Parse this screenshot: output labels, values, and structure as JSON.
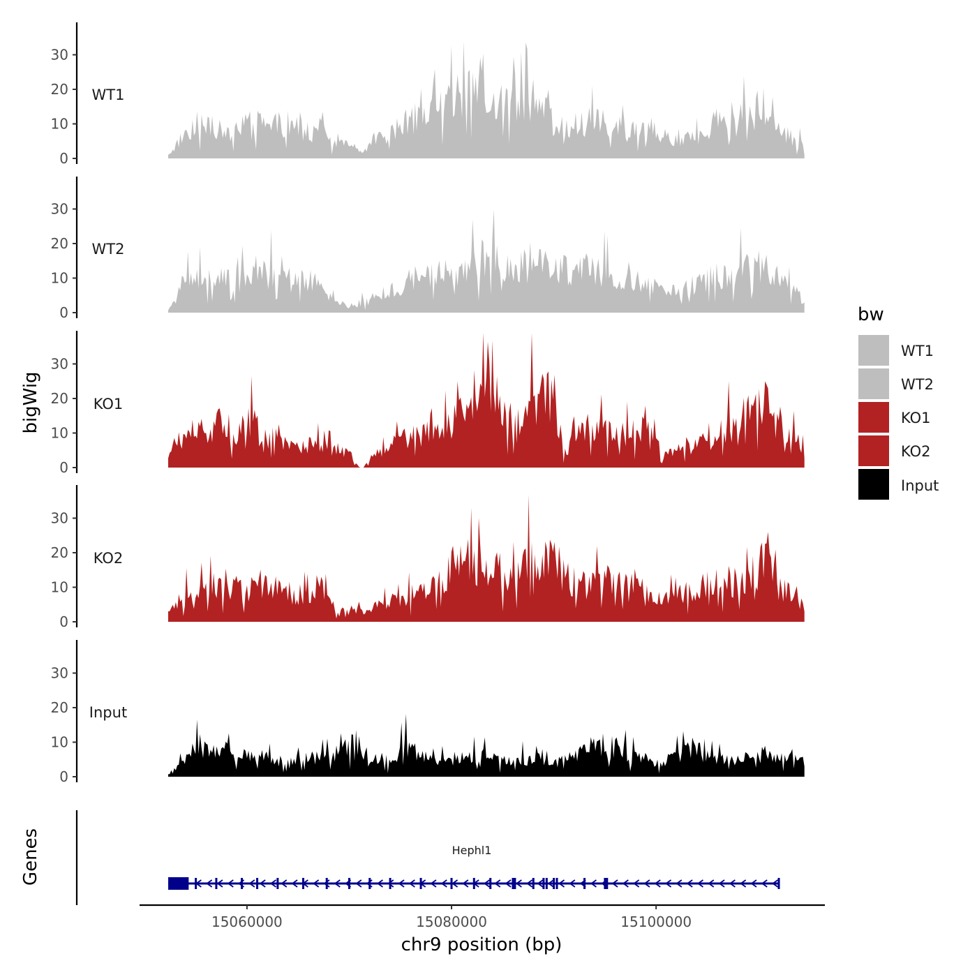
{
  "chart_data": {
    "type": "area",
    "y_title": "bigWig",
    "x_title": "chr9 position (bp)",
    "genes_title": "Genes",
    "ylim": [
      0,
      40
    ],
    "y_ticks": [
      0,
      10,
      20,
      30
    ],
    "xlim": [
      15049500,
      15116500
    ],
    "x_ticks": [
      15060000,
      15080000,
      15100000
    ],
    "x_tick_labels": [
      "15060000",
      "15080000",
      "15100000"
    ],
    "region": [
      15052300,
      15114500
    ],
    "legend": {
      "title": "bw",
      "entries": [
        {
          "label": "WT1",
          "color": "#bebebe"
        },
        {
          "label": "WT2",
          "color": "#bebebe"
        },
        {
          "label": "KO1",
          "color": "#b22222"
        },
        {
          "label": "KO2",
          "color": "#b22222"
        },
        {
          "label": "Input",
          "color": "#000000"
        }
      ]
    },
    "series": [
      {
        "name": "WT1",
        "color": "#bebebe",
        "x": [
          15052300,
          15054000,
          15056000,
          15058000,
          15060000,
          15062000,
          15064000,
          15066000,
          15067000,
          15068000,
          15070000,
          15071500,
          15072500,
          15074000,
          15076000,
          15078000,
          15080000,
          15081000,
          15082000,
          15083300,
          15084000,
          15086000,
          15088000,
          15089500,
          15090000,
          15092000,
          15094000,
          15096000,
          15098000,
          15100000,
          15102000,
          15104000,
          15106000,
          15108000,
          15110000,
          15112000,
          15114500
        ],
        "values": [
          1,
          8,
          12,
          7,
          12,
          10,
          11,
          8,
          13,
          5,
          4,
          2,
          6,
          8,
          12,
          14,
          18,
          20,
          22,
          25,
          18,
          15,
          20,
          18,
          8,
          10,
          12,
          11,
          10,
          8,
          5,
          7,
          12,
          15,
          14,
          9,
          4
        ]
      },
      {
        "name": "WT2",
        "color": "#bebebe",
        "x": [
          15052300,
          15054000,
          15056000,
          15058000,
          15060000,
          15062000,
          15064000,
          15066000,
          15068000,
          15069000,
          15070000,
          15072000,
          15074000,
          15076000,
          15078000,
          15080000,
          15082000,
          15083500,
          15084500,
          15086000,
          15088000,
          15090000,
          15092000,
          15094000,
          15096000,
          15098000,
          15100000,
          15102000,
          15104000,
          15106000,
          15108000,
          15110000,
          15112000,
          15114500
        ],
        "values": [
          1,
          9,
          11,
          10,
          10,
          12,
          9,
          10,
          7,
          3,
          2,
          4,
          7,
          10,
          12,
          12,
          15,
          18,
          16,
          13,
          15,
          14,
          13,
          14,
          10,
          10,
          8,
          6,
          9,
          12,
          12,
          15,
          10,
          4
        ]
      },
      {
        "name": "KO1",
        "color": "#b22222",
        "x": [
          15052300,
          15053000,
          15054000,
          15055000,
          15056000,
          15057500,
          15059000,
          15060500,
          15062000,
          15063000,
          15064000,
          15066000,
          15068000,
          15070000,
          15071000,
          15071400,
          15072000,
          15073000,
          15074000,
          15075500,
          15077000,
          15078500,
          15080000,
          15081500,
          15082500,
          15083300,
          15084300,
          15085500,
          15086500,
          15087500,
          15088500,
          15089500,
          15090500,
          15091000,
          15092000,
          15094000,
          15096000,
          15098000,
          15099500,
          15100500,
          15102000,
          15104000,
          15106000,
          15108000,
          15109500,
          15110500,
          15111500,
          15112500,
          15114000,
          15114500
        ],
        "values": [
          3,
          8,
          10,
          12,
          10,
          14,
          11,
          16,
          8,
          12,
          6,
          7,
          6,
          4,
          0,
          0,
          3,
          5,
          7,
          10,
          10,
          15,
          14,
          17,
          24,
          34,
          22,
          18,
          16,
          20,
          22,
          23,
          14,
          3,
          12,
          12,
          11,
          11,
          15,
          4,
          5,
          7,
          10,
          14,
          20,
          22,
          14,
          12,
          9,
          4
        ]
      },
      {
        "name": "KO2",
        "color": "#b22222",
        "x": [
          15052300,
          15054000,
          15056000,
          15058000,
          15060000,
          15062000,
          15064000,
          15066000,
          15067000,
          15068000,
          15070000,
          15072000,
          15074000,
          15076000,
          15078000,
          15079500,
          15080500,
          15082000,
          15083000,
          15084500,
          15086000,
          15087500,
          15089000,
          15090000,
          15091000,
          15092500,
          15094000,
          15096000,
          15098000,
          15100000,
          15102000,
          15104000,
          15106000,
          15108000,
          15110000,
          15111000,
          15112500,
          15114500
        ],
        "values": [
          4,
          8,
          9,
          12,
          10,
          13,
          9,
          8,
          12,
          6,
          3,
          4,
          6,
          9,
          10,
          13,
          24,
          17,
          19,
          16,
          12,
          18,
          20,
          20,
          14,
          12,
          11,
          14,
          13,
          7,
          8,
          10,
          13,
          12,
          16,
          22,
          12,
          5
        ]
      },
      {
        "name": "Input",
        "color": "#000000",
        "x": [
          15052300,
          15054000,
          15055500,
          15057000,
          15058000,
          15060000,
          15062000,
          15064000,
          15066000,
          15068000,
          15069500,
          15070500,
          15072000,
          15074000,
          15075500,
          15077000,
          15079000,
          15081000,
          15083000,
          15085000,
          15087000,
          15088500,
          15090000,
          15092000,
          15094500,
          15096000,
          15098000,
          15100000,
          15102000,
          15103500,
          15105000,
          15107000,
          15109000,
          15111000,
          15113000,
          15114500
        ],
        "values": [
          1,
          5,
          10,
          7,
          8,
          6,
          6,
          4,
          6,
          6,
          9,
          12,
          6,
          5,
          10,
          6,
          5,
          6,
          7,
          5,
          5,
          7,
          4,
          7,
          10,
          9,
          6,
          5,
          6,
          10,
          6,
          6,
          6,
          6,
          6,
          6
        ]
      }
    ],
    "gene": {
      "name": "Hephl1",
      "start": 15052300,
      "end": 15112000,
      "utr": [
        15052300,
        15054300
      ],
      "color": "#00008b",
      "exons": [
        15055000,
        15057000,
        15059500,
        15061000,
        15063000,
        15065500,
        15067800,
        15070000,
        15072000,
        15074000,
        15077000,
        15080000,
        15082200,
        15083800,
        15086000,
        15086200,
        15088000,
        15089000,
        15089300,
        15090000,
        15090300,
        15093000,
        15095000,
        15095200
      ]
    }
  }
}
